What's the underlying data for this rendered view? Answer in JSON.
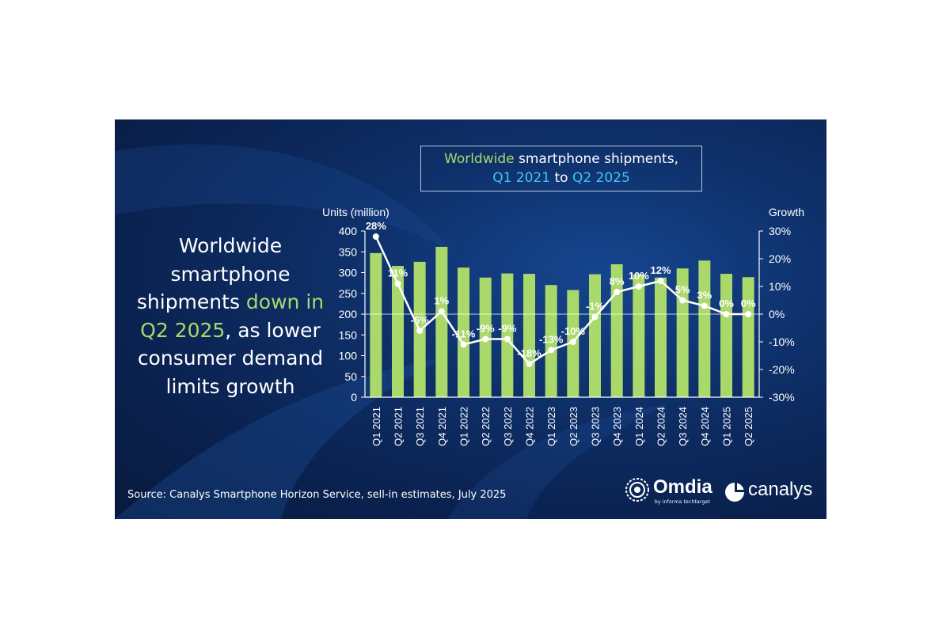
{
  "headline": {
    "part1": "Worldwide smartphone shipments ",
    "highlight": "down in Q2 2025",
    "part2": ", as lower consumer demand limits growth"
  },
  "title_box": {
    "w1": "Worldwide",
    "w2": " smartphone shipments,",
    "w3": "Q1 2021",
    "w4": " to ",
    "w5": "Q2 2025"
  },
  "source": "Source: Canalys Smartphone Horizon Service, sell-in estimates, July 2025",
  "logos": {
    "omdia": "Omdia",
    "omdia_sub": "by informa techtarget",
    "canalys": "canalys"
  },
  "colors": {
    "bar": "#a9d96a",
    "line": "#ffffff",
    "accent_green": "#a9d96a",
    "accent_cyan": "#41c6ee",
    "background": "#0e2f68"
  },
  "chart_data": {
    "type": "bar",
    "categories": [
      "Q1 2021",
      "Q2 2021",
      "Q3 2021",
      "Q4 2021",
      "Q1 2022",
      "Q2 2022",
      "Q3 2022",
      "Q4 2022",
      "Q1 2023",
      "Q2 2023",
      "Q3 2023",
      "Q4 2023",
      "Q1 2024",
      "Q2 2024",
      "Q3 2024",
      "Q4 2024",
      "Q1 2025",
      "Q2 2025"
    ],
    "series": [
      {
        "kind": "bar",
        "axis": "left",
        "values": [
          347,
          316,
          326,
          362,
          312,
          288,
          298,
          297,
          270,
          258,
          296,
          320,
          296,
          288,
          310,
          329,
          297,
          289
        ]
      },
      {
        "kind": "line",
        "axis": "right",
        "values": [
          28,
          11,
          -6,
          1,
          -11,
          -9,
          -9,
          -18,
          -13,
          -10,
          -1,
          8,
          10,
          12,
          5,
          3,
          0,
          0
        ],
        "labels": [
          "28%",
          "11%",
          "-6%",
          "1%",
          "-11%",
          "-9%",
          "-9%",
          "-18%",
          "-13%",
          "-10%",
          "-1%",
          "8%",
          "10%",
          "12%",
          "5%",
          "3%",
          "0%",
          "0%"
        ]
      }
    ],
    "ylabel": "Units (million)",
    "y2label": "Growth",
    "ylim": [
      0,
      400
    ],
    "y2lim": [
      -30,
      30
    ],
    "yticks": [
      "400",
      "350",
      "300",
      "250",
      "200",
      "150",
      "100",
      "50",
      "0"
    ],
    "y2ticks": [
      "30%",
      "20%",
      "10%",
      "0%",
      "-10%",
      "-20%",
      "-30%"
    ],
    "grid": false
  }
}
